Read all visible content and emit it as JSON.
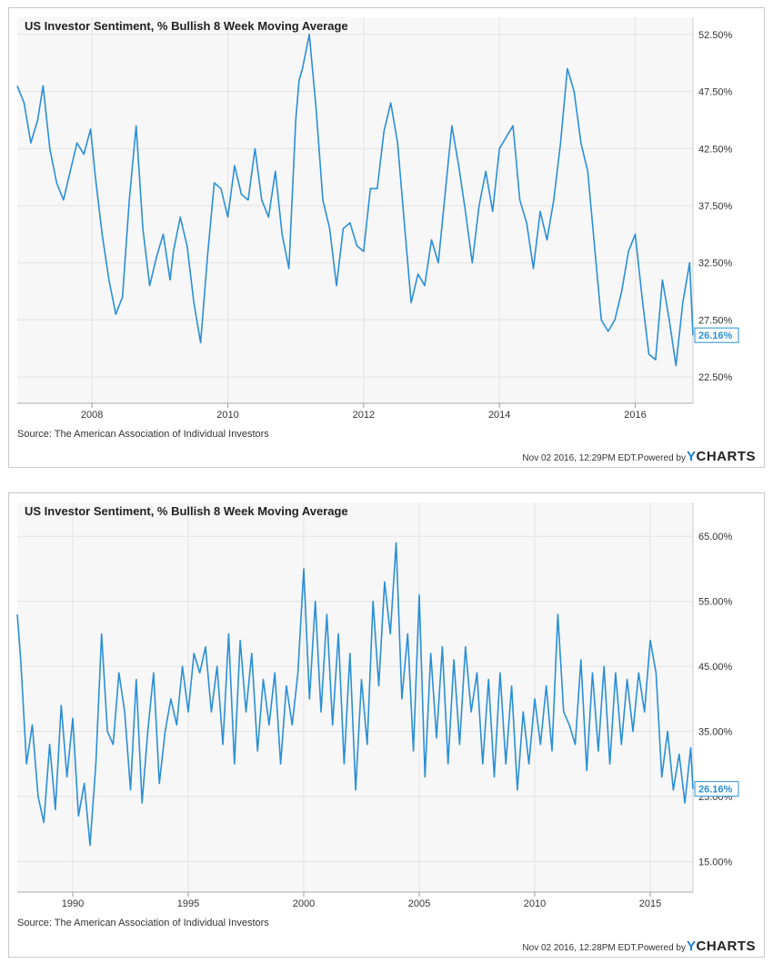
{
  "chart_data": [
    {
      "type": "line",
      "title": "US Investor Sentiment, % Bullish 8 Week Moving Average",
      "source": "Source: The American Association of Individual Investors",
      "timestamp": "Nov 02 2016, 12:29PM EDT.",
      "powered_by": "Powered by",
      "brand_y": "Y",
      "brand_rest": "CHARTS",
      "last_value_label": "26.16%",
      "line_color": "#2b8fd6",
      "xlim": [
        2006.9,
        2016.85
      ],
      "ylim": [
        20.2,
        54.0
      ],
      "x_ticks": [
        2008,
        2010,
        2012,
        2014,
        2016
      ],
      "x_tick_labels": [
        "2008",
        "2010",
        "2012",
        "2014",
        "2016"
      ],
      "y_ticks": [
        22.5,
        27.5,
        32.5,
        37.5,
        42.5,
        47.5,
        52.5
      ],
      "y_tick_labels": [
        "22.50%",
        "27.50%",
        "32.50%",
        "37.50%",
        "42.50%",
        "47.50%",
        "52.50%"
      ],
      "grid": true,
      "series": [
        {
          "x": [
            2006.9,
            2007.0,
            2007.1,
            2007.2,
            2007.28,
            2007.38,
            2007.48,
            2007.58,
            2007.68,
            2007.78,
            2007.88,
            2007.98,
            2008.05,
            2008.15,
            2008.25,
            2008.35,
            2008.45,
            2008.55,
            2008.65,
            2008.75,
            2008.85,
            2008.95,
            2009.05,
            2009.15,
            2009.2,
            2009.3,
            2009.4,
            2009.5,
            2009.6,
            2009.7,
            2009.8,
            2009.9,
            2010.0,
            2010.1,
            2010.2,
            2010.3,
            2010.4,
            2010.5,
            2010.6,
            2010.7,
            2010.8,
            2010.9,
            2011.0,
            2011.05,
            2011.1,
            2011.2,
            2011.3,
            2011.4,
            2011.5,
            2011.6,
            2011.7,
            2011.8,
            2011.9,
            2012.0,
            2012.1,
            2012.2,
            2012.3,
            2012.4,
            2012.5,
            2012.6,
            2012.7,
            2012.8,
            2012.9,
            2013.0,
            2013.1,
            2013.2,
            2013.3,
            2013.4,
            2013.5,
            2013.6,
            2013.7,
            2013.8,
            2013.9,
            2014.0,
            2014.1,
            2014.2,
            2014.3,
            2014.4,
            2014.5,
            2014.6,
            2014.7,
            2014.8,
            2014.9,
            2015.0,
            2015.1,
            2015.2,
            2015.3,
            2015.4,
            2015.5,
            2015.6,
            2015.7,
            2015.8,
            2015.9,
            2016.0,
            2016.1,
            2016.2,
            2016.3,
            2016.4,
            2016.5,
            2016.6,
            2016.7,
            2016.8,
            2016.85
          ],
          "values": [
            48.0,
            46.5,
            43.0,
            45.0,
            48.0,
            42.5,
            39.5,
            38.0,
            40.5,
            43.0,
            42.0,
            44.2,
            40.0,
            35.0,
            31.0,
            28.0,
            29.5,
            38.0,
            44.5,
            35.5,
            30.5,
            33.0,
            35.0,
            31.0,
            33.5,
            36.5,
            34.0,
            29.0,
            25.5,
            33.0,
            39.5,
            39.0,
            36.5,
            41.0,
            38.5,
            38.0,
            42.5,
            38.0,
            36.5,
            40.5,
            35.0,
            32.0,
            45.0,
            48.5,
            49.5,
            52.5,
            46.0,
            38.0,
            35.5,
            30.5,
            35.5,
            36.0,
            34.0,
            33.5,
            39.0,
            39.0,
            44.0,
            46.5,
            43.0,
            36.0,
            29.0,
            31.5,
            30.5,
            34.5,
            32.5,
            38.5,
            44.5,
            41.0,
            37.0,
            32.5,
            37.5,
            40.5,
            37.0,
            42.5,
            43.5,
            44.5,
            38.0,
            36.0,
            32.0,
            37.0,
            34.5,
            38.0,
            43.0,
            49.5,
            47.5,
            43.0,
            40.5,
            34.0,
            27.5,
            26.5,
            27.5,
            30.0,
            33.5,
            35.0,
            29.5,
            24.5,
            24.0,
            31.0,
            27.5,
            23.5,
            29.0,
            32.5,
            26.16
          ]
        }
      ]
    },
    {
      "type": "line",
      "title": "US Investor Sentiment, % Bullish 8 Week Moving Average",
      "source": "Source: The American Association of Individual Investors",
      "timestamp": "Nov 02 2016, 12:28PM EDT.",
      "powered_by": "Powered by",
      "brand_y": "Y",
      "brand_rest": "CHARTS",
      "last_value_label": "26.16%",
      "line_color": "#2b8fd6",
      "xlim": [
        1987.6,
        2016.85
      ],
      "ylim": [
        10.3,
        70.2
      ],
      "x_ticks": [
        1990,
        1995,
        2000,
        2005,
        2010,
        2015
      ],
      "x_tick_labels": [
        "1990",
        "1995",
        "2000",
        "2005",
        "2010",
        "2015"
      ],
      "y_ticks": [
        15,
        25,
        35,
        45,
        55,
        65
      ],
      "y_tick_labels": [
        "15.00%",
        "25.00%",
        "35.00%",
        "45.00%",
        "55.00%",
        "65.00%"
      ],
      "grid": true,
      "series": [
        {
          "x": [
            1987.6,
            1987.75,
            1988.0,
            1988.25,
            1988.5,
            1988.75,
            1989.0,
            1989.25,
            1989.5,
            1989.75,
            1990.0,
            1990.25,
            1990.5,
            1990.75,
            1991.0,
            1991.25,
            1991.5,
            1991.75,
            1992.0,
            1992.25,
            1992.5,
            1992.75,
            1993.0,
            1993.25,
            1993.5,
            1993.75,
            1994.0,
            1994.25,
            1994.5,
            1994.75,
            1995.0,
            1995.25,
            1995.5,
            1995.75,
            1996.0,
            1996.25,
            1996.5,
            1996.75,
            1997.0,
            1997.25,
            1997.5,
            1997.75,
            1998.0,
            1998.25,
            1998.5,
            1998.75,
            1999.0,
            1999.25,
            1999.5,
            1999.75,
            2000.0,
            2000.25,
            2000.5,
            2000.75,
            2001.0,
            2001.25,
            2001.5,
            2001.75,
            2002.0,
            2002.25,
            2002.5,
            2002.75,
            2003.0,
            2003.25,
            2003.5,
            2003.75,
            2004.0,
            2004.25,
            2004.5,
            2004.75,
            2005.0,
            2005.25,
            2005.5,
            2005.75,
            2006.0,
            2006.25,
            2006.5,
            2006.75,
            2007.0,
            2007.25,
            2007.5,
            2007.75,
            2008.0,
            2008.25,
            2008.5,
            2008.75,
            2009.0,
            2009.25,
            2009.5,
            2009.75,
            2010.0,
            2010.25,
            2010.5,
            2010.75,
            2011.0,
            2011.25,
            2011.5,
            2011.75,
            2012.0,
            2012.25,
            2012.5,
            2012.75,
            2013.0,
            2013.25,
            2013.5,
            2013.75,
            2014.0,
            2014.25,
            2014.5,
            2014.75,
            2015.0,
            2015.25,
            2015.5,
            2015.75,
            2016.0,
            2016.25,
            2016.5,
            2016.75,
            2016.85
          ],
          "values": [
            53.0,
            46.0,
            30.0,
            36.0,
            25.0,
            21.0,
            33.0,
            23.0,
            39.0,
            28.0,
            37.0,
            22.0,
            27.0,
            17.5,
            30.0,
            50.0,
            35.0,
            33.0,
            44.0,
            38.0,
            26.0,
            43.0,
            24.0,
            35.0,
            44.0,
            27.0,
            35.0,
            40.0,
            36.0,
            45.0,
            38.0,
            47.0,
            44.0,
            48.0,
            38.0,
            45.0,
            33.0,
            50.0,
            30.0,
            49.0,
            38.0,
            47.0,
            32.0,
            43.0,
            36.0,
            44.0,
            30.0,
            42.0,
            36.0,
            44.0,
            60.0,
            40.0,
            55.0,
            38.0,
            53.0,
            36.0,
            50.0,
            30.0,
            47.0,
            26.0,
            43.0,
            33.0,
            55.0,
            42.0,
            58.0,
            50.0,
            64.0,
            40.0,
            50.0,
            32.0,
            56.0,
            28.0,
            47.0,
            34.0,
            48.0,
            30.0,
            46.0,
            33.0,
            48.0,
            38.0,
            44.0,
            30.0,
            43.0,
            28.0,
            44.0,
            30.0,
            42.0,
            26.0,
            38.0,
            30.0,
            40.0,
            33.0,
            42.0,
            32.0,
            53.0,
            38.0,
            36.0,
            33.0,
            46.0,
            29.0,
            44.0,
            32.0,
            45.0,
            30.0,
            44.0,
            33.0,
            43.0,
            35.0,
            44.0,
            38.0,
            49.0,
            44.0,
            28.0,
            35.0,
            26.0,
            31.5,
            24.0,
            32.5,
            26.16
          ]
        }
      ]
    }
  ]
}
